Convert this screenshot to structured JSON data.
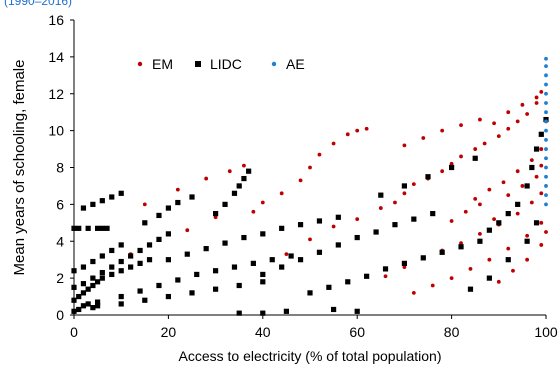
{
  "subtitle": "(1990–2016)",
  "chart_data": {
    "type": "scatter",
    "title": "",
    "xlabel": "Access to electricity (% of total population)",
    "ylabel": "Mean years of schooling, female",
    "xlim": [
      0,
      100
    ],
    "ylim": [
      0,
      16
    ],
    "xticks": [
      0,
      20,
      40,
      60,
      80,
      100
    ],
    "yticks": [
      0,
      2,
      4,
      6,
      8,
      10,
      12,
      14,
      16
    ],
    "grid": false,
    "legend_position": "top-left",
    "series": [
      {
        "name": "EM",
        "color": "#c00000",
        "marker": "dot",
        "points": [
          [
            15,
            6.0
          ],
          [
            22,
            6.8
          ],
          [
            28,
            7.4
          ],
          [
            33,
            7.8
          ],
          [
            36,
            8.1
          ],
          [
            12,
            3.3
          ],
          [
            18,
            4.1
          ],
          [
            24,
            4.6
          ],
          [
            30,
            5.3
          ],
          [
            38,
            5.6
          ],
          [
            40,
            6.1
          ],
          [
            44,
            6.6
          ],
          [
            48,
            7.3
          ],
          [
            50,
            8.0
          ],
          [
            52,
            8.7
          ],
          [
            55,
            9.3
          ],
          [
            58,
            9.8
          ],
          [
            60,
            10.0
          ],
          [
            62,
            10.1
          ],
          [
            45,
            3.3
          ],
          [
            50,
            4.1
          ],
          [
            55,
            4.8
          ],
          [
            60,
            5.2
          ],
          [
            65,
            5.8
          ],
          [
            68,
            6.1
          ],
          [
            70,
            6.6
          ],
          [
            72,
            7.1
          ],
          [
            75,
            7.4
          ],
          [
            78,
            7.8
          ],
          [
            80,
            8.2
          ],
          [
            82,
            8.6
          ],
          [
            85,
            9.0
          ],
          [
            87,
            9.3
          ],
          [
            90,
            9.7
          ],
          [
            92,
            10.1
          ],
          [
            94,
            10.5
          ],
          [
            96,
            10.9
          ],
          [
            98,
            11.5
          ],
          [
            99,
            12.1
          ],
          [
            66,
            2.1
          ],
          [
            70,
            2.6
          ],
          [
            74,
            3.1
          ],
          [
            78,
            3.5
          ],
          [
            82,
            3.9
          ],
          [
            86,
            4.4
          ],
          [
            90,
            4.9
          ],
          [
            94,
            5.5
          ],
          [
            97,
            6.1
          ],
          [
            99,
            6.6
          ],
          [
            70,
            9.2
          ],
          [
            74,
            9.6
          ],
          [
            78,
            10.0
          ],
          [
            82,
            10.3
          ],
          [
            86,
            10.6
          ],
          [
            89,
            10.4
          ],
          [
            92,
            11.0
          ],
          [
            95,
            11.4
          ],
          [
            98,
            11.8
          ],
          [
            72,
            1.2
          ],
          [
            76,
            1.6
          ],
          [
            80,
            2.0
          ],
          [
            84,
            2.5
          ],
          [
            88,
            3.0
          ],
          [
            92,
            3.6
          ],
          [
            96,
            4.3
          ],
          [
            99,
            5.0
          ],
          [
            85,
            6.3
          ],
          [
            88,
            6.8
          ],
          [
            91,
            7.2
          ],
          [
            94,
            7.8
          ],
          [
            97,
            8.4
          ],
          [
            99,
            9.0
          ],
          [
            90,
            1.8
          ],
          [
            93,
            2.4
          ],
          [
            96,
            3.0
          ],
          [
            99,
            3.8
          ],
          [
            80,
            5.1
          ],
          [
            83,
            5.6
          ],
          [
            86,
            6.0
          ],
          [
            89,
            5.2
          ],
          [
            92,
            6.5
          ],
          [
            95,
            7.0
          ],
          [
            98,
            7.5
          ],
          [
            99,
            8.1
          ],
          [
            100,
            10.5
          ],
          [
            100,
            4.5
          ]
        ]
      },
      {
        "name": "LIDC",
        "color": "#000000",
        "marker": "square",
        "points": [
          [
            0,
            4.7
          ],
          [
            1,
            4.7
          ],
          [
            3,
            4.7
          ],
          [
            5,
            4.7
          ],
          [
            6,
            4.7
          ],
          [
            7,
            4.7
          ],
          [
            0,
            0.2
          ],
          [
            1,
            0.3
          ],
          [
            2,
            0.5
          ],
          [
            3,
            0.6
          ],
          [
            4,
            0.4
          ],
          [
            5,
            0.7
          ],
          [
            0,
            0.8
          ],
          [
            1,
            1.0
          ],
          [
            2,
            1.2
          ],
          [
            3,
            1.4
          ],
          [
            4,
            1.6
          ],
          [
            5,
            1.8
          ],
          [
            6,
            2.0
          ],
          [
            8,
            2.2
          ],
          [
            10,
            2.4
          ],
          [
            12,
            2.6
          ],
          [
            14,
            2.8
          ],
          [
            16,
            3.0
          ],
          [
            0,
            1.5
          ],
          [
            2,
            1.7
          ],
          [
            4,
            2.0
          ],
          [
            6,
            2.3
          ],
          [
            8,
            2.6
          ],
          [
            10,
            2.9
          ],
          [
            12,
            3.2
          ],
          [
            14,
            3.5
          ],
          [
            16,
            3.8
          ],
          [
            18,
            4.1
          ],
          [
            20,
            4.4
          ],
          [
            0,
            2.4
          ],
          [
            2,
            2.6
          ],
          [
            4,
            2.9
          ],
          [
            6,
            3.2
          ],
          [
            8,
            3.5
          ],
          [
            10,
            3.8
          ],
          [
            2,
            5.8
          ],
          [
            4,
            6.0
          ],
          [
            6,
            6.2
          ],
          [
            8,
            6.4
          ],
          [
            10,
            6.6
          ],
          [
            15,
            5.0
          ],
          [
            18,
            5.4
          ],
          [
            20,
            5.8
          ],
          [
            22,
            6.1
          ],
          [
            25,
            6.4
          ],
          [
            10,
            1.0
          ],
          [
            14,
            1.3
          ],
          [
            18,
            1.6
          ],
          [
            22,
            1.9
          ],
          [
            26,
            2.2
          ],
          [
            30,
            2.4
          ],
          [
            34,
            2.6
          ],
          [
            38,
            2.8
          ],
          [
            42,
            3.0
          ],
          [
            46,
            3.2
          ],
          [
            5,
            0.5
          ],
          [
            10,
            0.6
          ],
          [
            15,
            0.8
          ],
          [
            20,
            1.0
          ],
          [
            25,
            1.2
          ],
          [
            30,
            1.4
          ],
          [
            35,
            1.6
          ],
          [
            40,
            1.8
          ],
          [
            20,
            3.0
          ],
          [
            24,
            3.3
          ],
          [
            28,
            3.6
          ],
          [
            32,
            3.9
          ],
          [
            36,
            4.2
          ],
          [
            40,
            4.4
          ],
          [
            44,
            4.7
          ],
          [
            48,
            4.9
          ],
          [
            52,
            5.1
          ],
          [
            56,
            5.3
          ],
          [
            30,
            5.5
          ],
          [
            32,
            6.0
          ],
          [
            34,
            6.6
          ],
          [
            35,
            7.0
          ],
          [
            36,
            7.4
          ],
          [
            37,
            7.8
          ],
          [
            40,
            2.2
          ],
          [
            44,
            2.6
          ],
          [
            48,
            3.0
          ],
          [
            52,
            3.4
          ],
          [
            56,
            3.8
          ],
          [
            60,
            4.2
          ],
          [
            64,
            4.5
          ],
          [
            68,
            4.9
          ],
          [
            72,
            5.2
          ],
          [
            76,
            5.5
          ],
          [
            50,
            1.2
          ],
          [
            54,
            1.5
          ],
          [
            58,
            1.8
          ],
          [
            62,
            2.1
          ],
          [
            66,
            2.5
          ],
          [
            70,
            2.8
          ],
          [
            74,
            3.1
          ],
          [
            78,
            3.4
          ],
          [
            82,
            3.7
          ],
          [
            86,
            4.0
          ],
          [
            88,
            4.6
          ],
          [
            90,
            5.0
          ],
          [
            92,
            5.5
          ],
          [
            94,
            6.0
          ],
          [
            96,
            7.0
          ],
          [
            97,
            8.0
          ],
          [
            98,
            9.0
          ],
          [
            99,
            9.8
          ],
          [
            100,
            10.6
          ],
          [
            35,
            0.1
          ],
          [
            40,
            0.1
          ],
          [
            45,
            0.2
          ],
          [
            55,
            0.3
          ],
          [
            60,
            0.2
          ],
          [
            65,
            6.5
          ],
          [
            70,
            7.0
          ],
          [
            75,
            7.5
          ],
          [
            80,
            8.0
          ],
          [
            85,
            8.5
          ],
          [
            84,
            1.4
          ],
          [
            88,
            2.0
          ],
          [
            92,
            3.0
          ],
          [
            96,
            4.0
          ],
          [
            98,
            5.0
          ]
        ]
      },
      {
        "name": "AE",
        "color": "#1f7fd0",
        "marker": "dot",
        "points": [
          [
            100,
            6.0
          ],
          [
            100,
            6.5
          ],
          [
            100,
            7.0
          ],
          [
            100,
            7.5
          ],
          [
            100,
            8.0
          ],
          [
            100,
            8.5
          ],
          [
            100,
            9.0
          ],
          [
            100,
            9.5
          ],
          [
            100,
            10.0
          ],
          [
            100,
            10.5
          ],
          [
            100,
            11.0
          ],
          [
            100,
            11.5
          ],
          [
            100,
            12.0
          ],
          [
            100,
            12.5
          ],
          [
            100,
            13.0
          ],
          [
            100,
            13.5
          ],
          [
            100,
            13.9
          ]
        ]
      }
    ]
  }
}
